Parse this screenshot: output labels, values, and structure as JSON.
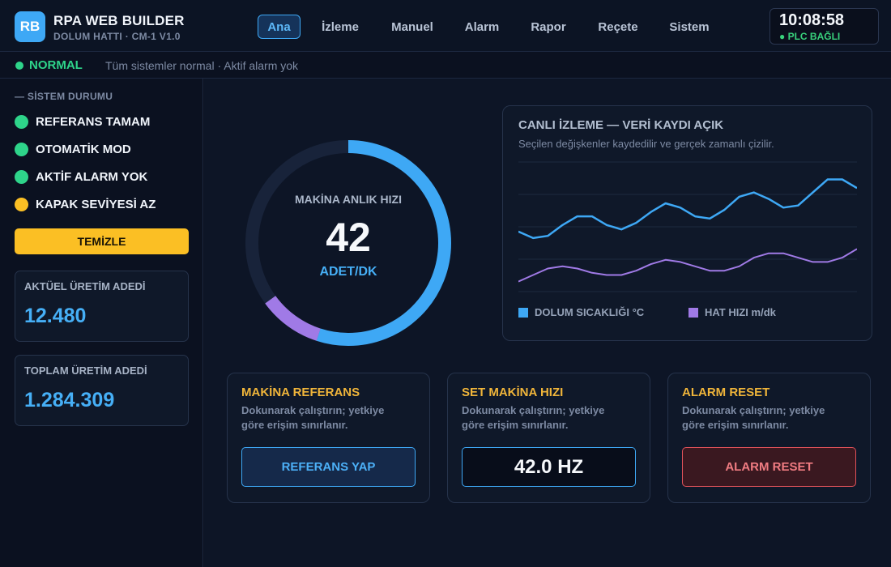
{
  "header": {
    "logo_text": "RB",
    "title": "RPA WEB BUILDER",
    "subtitle": "DOLUM HATTI · CM-1 V1.0",
    "nav": [
      "Ana",
      "İzleme",
      "Manuel",
      "Alarm",
      "Rapor",
      "Reçete",
      "Sistem"
    ],
    "active_nav": "Ana",
    "clock": "10:08:58",
    "plc_status": "● PLC BAĞLI"
  },
  "status_strip": {
    "status": "NORMAL",
    "message": "Tüm sistemler normal · Aktif alarm yok"
  },
  "sidebar": {
    "section_title": "— SİSTEM DURUMU",
    "indicators": [
      {
        "label": "REFERANS TAMAM",
        "color": "#2ed48a"
      },
      {
        "label": "OTOMATİK MOD",
        "color": "#2ed48a"
      },
      {
        "label": "AKTİF ALARM YOK",
        "color": "#2ed48a"
      },
      {
        "label": "KAPAK SEVİYESİ AZ",
        "color": "#fbbf24"
      }
    ],
    "clean_button": "TEMİZLE",
    "counters": [
      {
        "label": "AKTÜEL ÜRETİM ADEDİ",
        "value": "12.480"
      },
      {
        "label": "TOPLAM ÜRETİM ADEDİ",
        "value": "1.284.309"
      }
    ]
  },
  "gauge": {
    "title": "MAKİNA ANLIK HIZI",
    "value": "42",
    "unit": "ADET/DK",
    "fill_fraction_blue": 0.55,
    "fill_fraction_purple": 0.1,
    "colors": {
      "track": "#18233a",
      "blue": "#3ea8f5",
      "purple": "#a07ae6"
    }
  },
  "live_chart": {
    "title": "CANLI İZLEME — VERİ KAYDI AÇIK",
    "subtitle": "Seçilen değişkenler kaydedilir ve gerçek zamanlı çizilir."
  },
  "chart_data": {
    "type": "line",
    "x": [
      0,
      1,
      2,
      3,
      4,
      5,
      6,
      7,
      8,
      9,
      10,
      11,
      12,
      13,
      14,
      15,
      16,
      17,
      18,
      19,
      20,
      21,
      22,
      23
    ],
    "series": [
      {
        "name": "DOLUM SICAKLIĞI °C",
        "color": "#3ea8f5",
        "values": [
          2.8,
          2.5,
          2.6,
          3.1,
          3.5,
          3.5,
          3.1,
          2.9,
          3.2,
          3.7,
          4.1,
          3.9,
          3.5,
          3.4,
          3.8,
          4.4,
          4.6,
          4.3,
          3.9,
          4.0,
          4.6,
          5.2,
          5.2,
          4.8
        ]
      },
      {
        "name": "HAT HIZI m/dk",
        "color": "#a07ae6",
        "values": [
          0.5,
          0.8,
          1.1,
          1.2,
          1.1,
          0.9,
          0.8,
          0.8,
          1.0,
          1.3,
          1.5,
          1.4,
          1.2,
          1.0,
          1.0,
          1.2,
          1.6,
          1.8,
          1.8,
          1.6,
          1.4,
          1.4,
          1.6,
          2.0
        ]
      }
    ],
    "ylim": [
      0,
      6
    ],
    "grid": true,
    "legend": "bottom-left"
  },
  "controls": [
    {
      "title": "MAKİNA REFERANS",
      "desc": "Dokunarak çalıştırın; yetkiye göre erişim sınırlanır.",
      "button": "REFERANS YAP"
    },
    {
      "title": "SET MAKİNA HIZI",
      "desc": "Dokunarak çalıştırın; yetkiye göre erişim sınırlanır.",
      "button": "42.0 HZ"
    },
    {
      "title": "ALARM RESET",
      "desc": "Dokunarak çalıştırın; yetkiye göre erişim sınırlanır.",
      "button": "ALARM RESET"
    }
  ]
}
